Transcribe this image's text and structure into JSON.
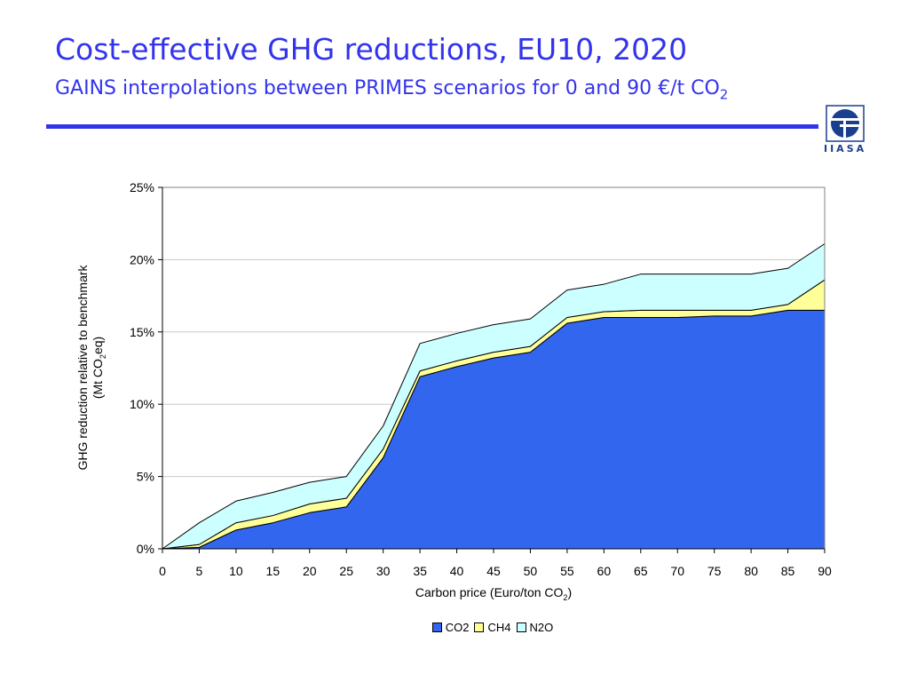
{
  "slide": {
    "title": "Cost-effective GHG reductions, EU10, 2020",
    "subtitle": "GAINS interpolations between PRIMES scenarios for 0 and 90 €/t CO",
    "subtitle_sub": "2",
    "logo_text": "IIASA"
  },
  "axis_labels": {
    "y_line1": "GHG reduction relative to benchmark",
    "y_line2_pre": "(Mt CO",
    "y_line2_sub": "2",
    "y_line2_post": "eq)",
    "x_pre": "Carbon price (Euro/ton CO",
    "x_sub": "2",
    "x_post": ")"
  },
  "chart_data": {
    "type": "area",
    "stacked": true,
    "x": [
      0,
      5,
      10,
      15,
      20,
      25,
      30,
      35,
      40,
      45,
      50,
      55,
      60,
      65,
      70,
      75,
      80,
      85,
      90
    ],
    "series": [
      {
        "name": "CO2",
        "color": "#3366ee",
        "values": [
          0,
          0.1,
          1.3,
          1.8,
          2.5,
          2.9,
          6.3,
          11.9,
          12.6,
          13.2,
          13.6,
          15.6,
          16.0,
          16.0,
          16.0,
          16.1,
          16.1,
          16.5,
          16.5
        ]
      },
      {
        "name": "CH4",
        "color": "#ffff99",
        "values": [
          0,
          0.2,
          0.5,
          0.5,
          0.6,
          0.6,
          0.6,
          0.4,
          0.4,
          0.4,
          0.4,
          0.4,
          0.4,
          0.5,
          0.5,
          0.4,
          0.4,
          0.4,
          2.1
        ]
      },
      {
        "name": "N2O",
        "color": "#ccffff",
        "values": [
          0,
          1.5,
          1.5,
          1.6,
          1.5,
          1.5,
          1.6,
          1.9,
          1.9,
          1.9,
          1.9,
          1.9,
          1.9,
          2.5,
          2.5,
          2.5,
          2.5,
          2.5,
          2.5
        ]
      }
    ],
    "ylim": [
      0,
      25
    ],
    "yticks": [
      0,
      5,
      10,
      15,
      20,
      25
    ],
    "ytick_labels": [
      "0%",
      "5%",
      "10%",
      "15%",
      "20%",
      "25%"
    ],
    "xlim": [
      0,
      90
    ],
    "grid": true,
    "legend_position": "bottom"
  }
}
